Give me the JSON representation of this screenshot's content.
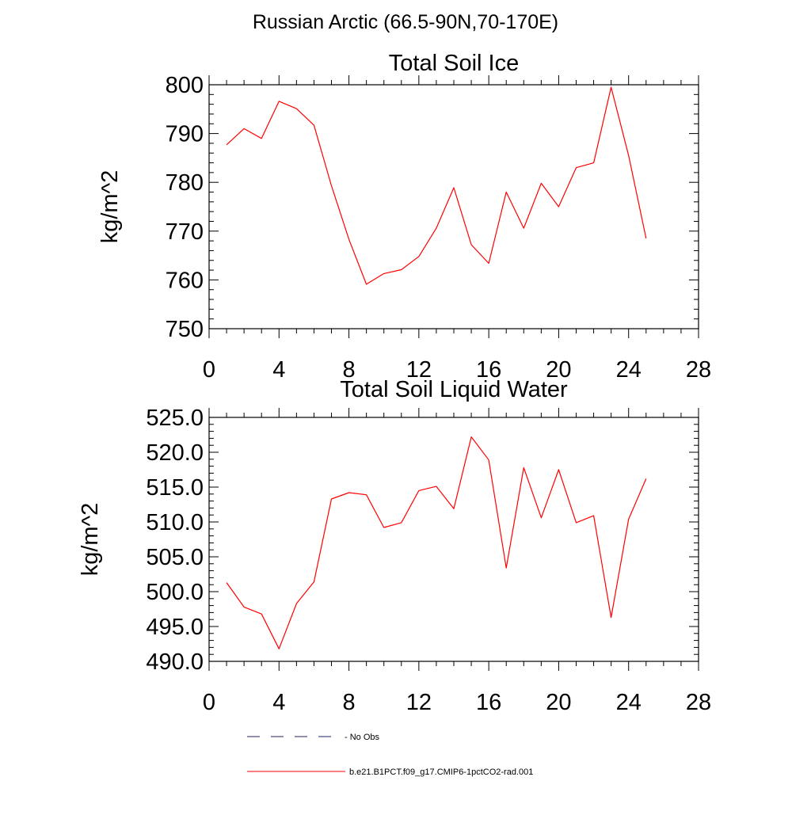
{
  "figure": {
    "suptitle": "Russian Arctic (66.5-90N,70-170E)",
    "legend": [
      {
        "label": "No Obs",
        "style": "dashed",
        "color": "#1f1f5f"
      },
      {
        "label": "b.e21.B1PCT.f09_g17.CMIP6-1pctCO2-rad.001",
        "style": "solid",
        "color": "#ff0000"
      }
    ]
  },
  "chart_data": [
    {
      "type": "line",
      "title": "Total Soil Ice",
      "xlabel": "",
      "ylabel": "kg/m^2",
      "xlim": [
        0,
        28
      ],
      "ylim": [
        750,
        800
      ],
      "xticks": [
        0,
        4,
        8,
        12,
        16,
        20,
        24,
        28
      ],
      "yticks": [
        750,
        760,
        770,
        780,
        790,
        800
      ],
      "ytick_labels": [
        "750",
        "760",
        "770",
        "780",
        "790",
        "800"
      ],
      "grid": false,
      "series": [
        {
          "name": "b.e21.B1PCT.f09_g17.CMIP6-1pctCO2-rad.001",
          "color": "#ff0000",
          "x": [
            1,
            2,
            3,
            4,
            5,
            6,
            7,
            8,
            9,
            10,
            11,
            12,
            13,
            14,
            15,
            16,
            17,
            18,
            19,
            20,
            21,
            22,
            23,
            24,
            25
          ],
          "values": [
            787.7,
            791.0,
            789.0,
            796.6,
            795.1,
            791.7,
            779.3,
            768.3,
            759.1,
            761.3,
            762.1,
            764.8,
            770.6,
            778.9,
            767.2,
            763.4,
            778.0,
            770.6,
            779.8,
            775.0,
            783.0,
            784.0,
            799.5,
            785.5,
            768.5
          ]
        }
      ]
    },
    {
      "type": "line",
      "title": "Total Soil Liquid Water",
      "xlabel": "",
      "ylabel": "kg/m^2",
      "xlim": [
        0,
        28
      ],
      "ylim": [
        490,
        525
      ],
      "xticks": [
        0,
        4,
        8,
        12,
        16,
        20,
        24,
        28
      ],
      "yticks": [
        490,
        495,
        500,
        505,
        510,
        515,
        520,
        525
      ],
      "ytick_labels": [
        "490.0",
        "495.0",
        "500.0",
        "505.0",
        "510.0",
        "515.0",
        "520.0",
        "525.0"
      ],
      "grid": false,
      "series": [
        {
          "name": "b.e21.B1PCT.f09_g17.CMIP6-1pctCO2-rad.001",
          "color": "#ff0000",
          "x": [
            1,
            2,
            3,
            4,
            5,
            6,
            7,
            8,
            9,
            10,
            11,
            12,
            13,
            14,
            15,
            16,
            17,
            18,
            19,
            20,
            21,
            22,
            23,
            24,
            25
          ],
          "values": [
            501.3,
            497.8,
            496.8,
            491.8,
            498.3,
            501.4,
            513.3,
            514.2,
            513.9,
            509.2,
            509.9,
            514.5,
            515.1,
            511.9,
            522.2,
            518.9,
            503.4,
            517.8,
            510.6,
            517.5,
            509.9,
            510.9,
            496.3,
            510.4,
            516.2
          ]
        }
      ]
    }
  ]
}
